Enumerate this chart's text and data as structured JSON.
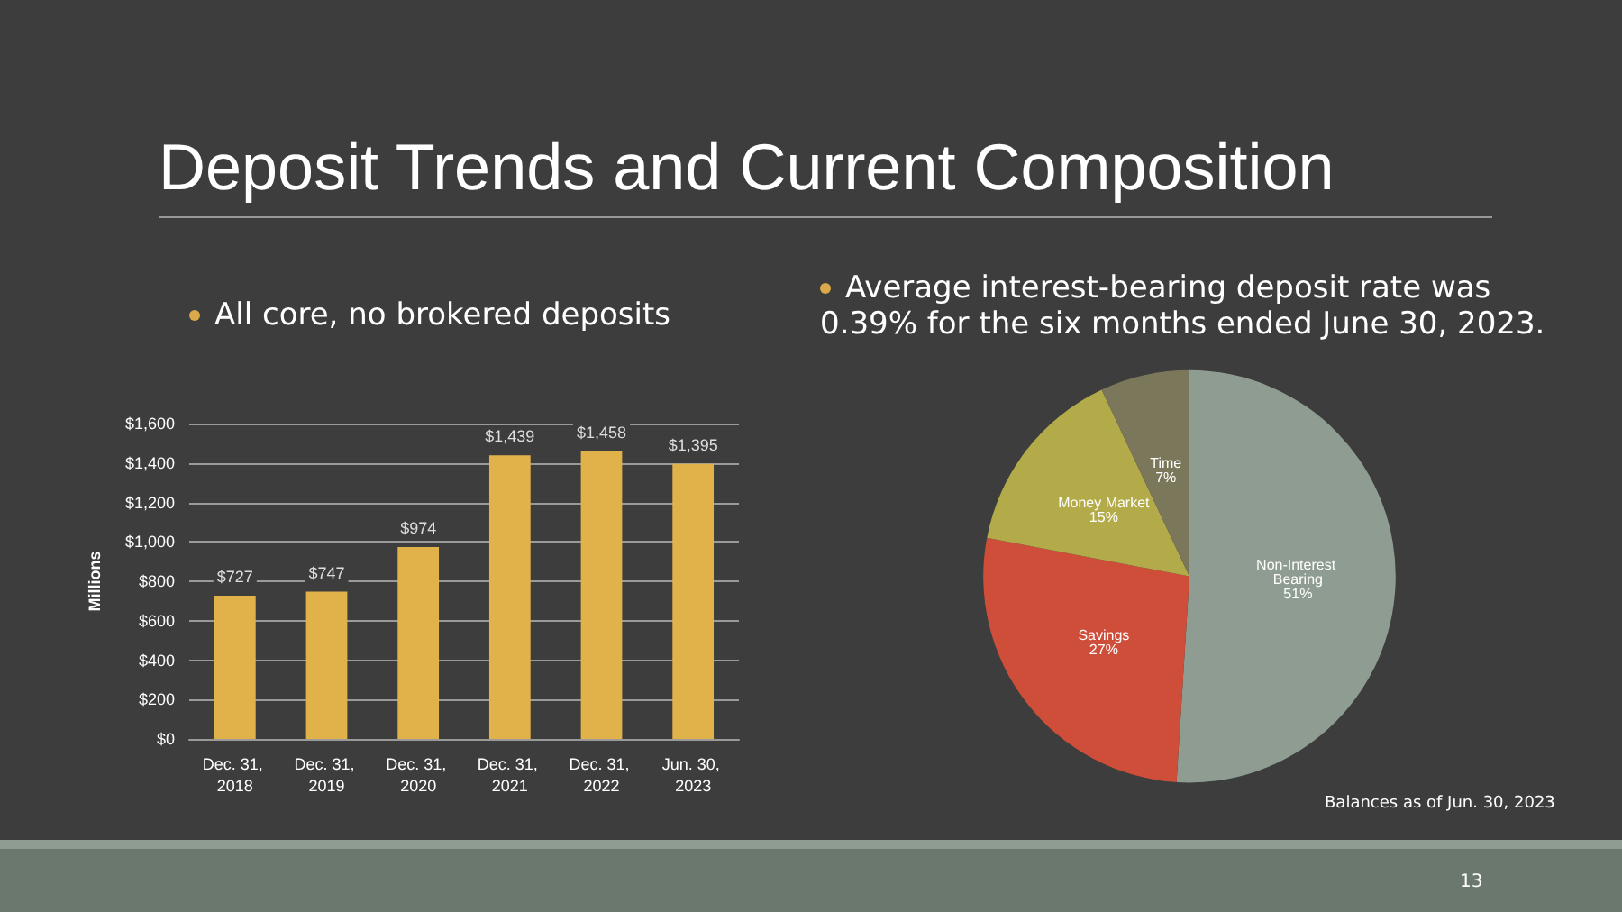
{
  "chart_data": [
    {
      "type": "bar",
      "title": "Deposit Trends and Current Composition",
      "subtitle": "All core, no brokered deposits",
      "ylabel": "Millions",
      "categories": [
        "Dec. 31, 2018",
        "Dec. 31, 2019",
        "Dec. 31, 2020",
        "Dec. 31, 2021",
        "Dec. 31, 2022",
        "Jun. 30, 2023"
      ],
      "values": [
        727,
        747,
        974,
        1439,
        1458,
        1395
      ],
      "value_labels": [
        "$727",
        "$747",
        "$974",
        "$1,439",
        "$1,458",
        "$1,395"
      ],
      "color": "#e2b24a",
      "ylim": [
        0,
        1600
      ],
      "yticks": [
        {
          "value": 0,
          "label": "$0"
        },
        {
          "value": 200,
          "label": "$200"
        },
        {
          "value": 400,
          "label": "$400"
        },
        {
          "value": 600,
          "label": "$600"
        },
        {
          "value": 800,
          "label": "$800"
        },
        {
          "value": 1000,
          "label": "$1,000"
        },
        {
          "value": 1200,
          "label": "$1,200"
        },
        {
          "value": 1400,
          "label": "$1,400"
        },
        {
          "value": 1600,
          "label": "$1,600"
        }
      ],
      "grid": "y"
    },
    {
      "type": "pie",
      "subtitle": "Average interest-bearing deposit rate was 0.39% for the six months ended June 30, 2023.",
      "categories": [
        "Non-Interest Bearing",
        "Savings",
        "Money Market",
        "Time"
      ],
      "values": [
        51,
        27,
        15,
        7
      ],
      "value_labels": [
        "51%",
        "27%",
        "15%",
        "7%"
      ],
      "colors": [
        "#8e9c91",
        "#cf4e3a",
        "#b3ab4a",
        "#7b775a"
      ],
      "annotations": [
        "Balances as of Jun. 30, 2023",
        "13"
      ]
    }
  ]
}
